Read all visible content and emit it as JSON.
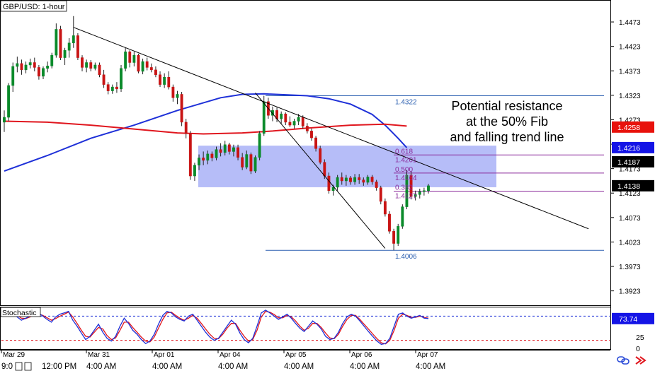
{
  "chart_data": {
    "type": "candlestick",
    "symbol": "GBP/USD: 1-hour",
    "price_axis": {
      "ylim": [
        1.3895,
        1.4515
      ],
      "ticks": [
        "1.4473",
        "1.4423",
        "1.4373",
        "1.4323",
        "1.4273",
        "1.4223",
        "1.4173",
        "1.4123",
        "1.4073",
        "1.4023",
        "1.3973",
        "1.3923"
      ]
    },
    "price_badges": [
      {
        "label": "1.4258",
        "value": 1.4258,
        "bg": "#e8120c",
        "fg": "#ffffff"
      },
      {
        "label": "1.4216",
        "value": 1.4216,
        "bg": "#1414e6",
        "fg": "#ffffff"
      },
      {
        "label": "1.4187",
        "value": 1.4187,
        "bg": "#000000",
        "fg": "#ffffff"
      },
      {
        "label": "1.4138",
        "value": 1.4138,
        "bg": "#000000",
        "fg": "#ffffff"
      }
    ],
    "date_labels": [
      "Mar 29",
      "Mar 31",
      "Apr 01",
      "Apr 04",
      "Apr 05",
      "Apr 06",
      "Apr 07"
    ],
    "time_labels": [
      "9:0",
      "12:00 PM",
      "4:00 AM",
      "4:00 AM",
      "4:00 AM",
      "4:00 AM",
      "4:00 AM",
      "4:00 AM"
    ],
    "candles": [
      [
        1.4268,
        1.4292,
        1.4248,
        1.4278
      ],
      [
        1.4278,
        1.4348,
        1.427,
        1.4343
      ],
      [
        1.4343,
        1.439,
        1.433,
        1.4382
      ],
      [
        1.4382,
        1.4402,
        1.437,
        1.4388
      ],
      [
        1.4388,
        1.4396,
        1.4365,
        1.4375
      ],
      [
        1.4375,
        1.4392,
        1.4368,
        1.4385
      ],
      [
        1.4385,
        1.4398,
        1.4378,
        1.439
      ],
      [
        1.439,
        1.44,
        1.4372,
        1.438
      ],
      [
        1.438,
        1.4385,
        1.4355,
        1.4362
      ],
      [
        1.4362,
        1.4382,
        1.4356,
        1.4378
      ],
      [
        1.4378,
        1.4392,
        1.437,
        1.4383
      ],
      [
        1.4383,
        1.441,
        1.4378,
        1.4405
      ],
      [
        1.4405,
        1.447,
        1.44,
        1.4458
      ],
      [
        1.4458,
        1.4465,
        1.4395,
        1.44
      ],
      [
        1.44,
        1.442,
        1.4385,
        1.4415
      ],
      [
        1.4415,
        1.444,
        1.44,
        1.443
      ],
      [
        1.443,
        1.4485,
        1.442,
        1.4445
      ],
      [
        1.4445,
        1.445,
        1.4395,
        1.44
      ],
      [
        1.44,
        1.4405,
        1.4372,
        1.438
      ],
      [
        1.438,
        1.4396,
        1.437,
        1.439
      ],
      [
        1.439,
        1.4395,
        1.4372,
        1.4378
      ],
      [
        1.4378,
        1.439,
        1.4374,
        1.4385
      ],
      [
        1.4385,
        1.439,
        1.436,
        1.4365
      ],
      [
        1.4365,
        1.4375,
        1.4338,
        1.4345
      ],
      [
        1.4345,
        1.435,
        1.4325,
        1.4332
      ],
      [
        1.4332,
        1.4345,
        1.4326,
        1.434
      ],
      [
        1.434,
        1.435,
        1.4328,
        1.4336
      ],
      [
        1.4336,
        1.4385,
        1.433,
        1.4378
      ],
      [
        1.4378,
        1.442,
        1.4372,
        1.4412
      ],
      [
        1.4412,
        1.4415,
        1.438,
        1.439
      ],
      [
        1.439,
        1.4412,
        1.4382,
        1.4405
      ],
      [
        1.4405,
        1.4408,
        1.4368,
        1.4372
      ],
      [
        1.4372,
        1.4398,
        1.4366,
        1.4392
      ],
      [
        1.4392,
        1.44,
        1.4374,
        1.438
      ],
      [
        1.438,
        1.4388,
        1.437,
        1.4375
      ],
      [
        1.4375,
        1.4382,
        1.436,
        1.4365
      ],
      [
        1.4365,
        1.4372,
        1.434,
        1.4345
      ],
      [
        1.4345,
        1.4368,
        1.4338,
        1.436
      ],
      [
        1.436,
        1.4372,
        1.4335,
        1.434
      ],
      [
        1.434,
        1.4345,
        1.431,
        1.4318
      ],
      [
        1.4318,
        1.4332,
        1.4305,
        1.4325
      ],
      [
        1.4325,
        1.433,
        1.426,
        1.4268
      ],
      [
        1.4268,
        1.4275,
        1.4235,
        1.4245
      ],
      [
        1.4245,
        1.425,
        1.415,
        1.4158
      ],
      [
        1.4158,
        1.4185,
        1.4148,
        1.418
      ],
      [
        1.418,
        1.4202,
        1.417,
        1.4195
      ],
      [
        1.4195,
        1.4208,
        1.418,
        1.419
      ],
      [
        1.419,
        1.421,
        1.4182,
        1.4203
      ],
      [
        1.4203,
        1.4208,
        1.4188,
        1.4195
      ],
      [
        1.4195,
        1.4218,
        1.419,
        1.4212
      ],
      [
        1.4212,
        1.4225,
        1.4198,
        1.4206
      ],
      [
        1.4206,
        1.423,
        1.42,
        1.4222
      ],
      [
        1.4222,
        1.4226,
        1.4202,
        1.4208
      ],
      [
        1.4208,
        1.4222,
        1.4198,
        1.4216
      ],
      [
        1.4216,
        1.4222,
        1.419,
        1.4196
      ],
      [
        1.4196,
        1.4205,
        1.417,
        1.4176
      ],
      [
        1.4176,
        1.421,
        1.4172,
        1.4202
      ],
      [
        1.4202,
        1.4206,
        1.4162,
        1.4168
      ],
      [
        1.4168,
        1.42,
        1.4164,
        1.4196
      ],
      [
        1.4196,
        1.425,
        1.419,
        1.4245
      ],
      [
        1.4245,
        1.4322,
        1.424,
        1.431
      ],
      [
        1.431,
        1.4318,
        1.4275,
        1.4282
      ],
      [
        1.4282,
        1.43,
        1.427,
        1.4292
      ],
      [
        1.4292,
        1.4298,
        1.4268,
        1.4275
      ],
      [
        1.4275,
        1.429,
        1.4265,
        1.4285
      ],
      [
        1.4285,
        1.4288,
        1.4262,
        1.4268
      ],
      [
        1.4268,
        1.428,
        1.4258,
        1.4262
      ],
      [
        1.4262,
        1.4275,
        1.4255,
        1.427
      ],
      [
        1.427,
        1.4285,
        1.4262,
        1.4278
      ],
      [
        1.4278,
        1.4282,
        1.4255,
        1.426
      ],
      [
        1.426,
        1.4266,
        1.4245,
        1.425
      ],
      [
        1.425,
        1.4255,
        1.423,
        1.4236
      ],
      [
        1.4236,
        1.424,
        1.4208,
        1.4214
      ],
      [
        1.4214,
        1.422,
        1.4182,
        1.4186
      ],
      [
        1.4186,
        1.4192,
        1.4152,
        1.4158
      ],
      [
        1.4158,
        1.4165,
        1.4122,
        1.4128
      ],
      [
        1.4128,
        1.414,
        1.4118,
        1.4135
      ],
      [
        1.4135,
        1.416,
        1.4128,
        1.4155
      ],
      [
        1.4155,
        1.4165,
        1.414,
        1.4148
      ],
      [
        1.4148,
        1.416,
        1.4138,
        1.4154
      ],
      [
        1.4154,
        1.4158,
        1.414,
        1.4146
      ],
      [
        1.4146,
        1.4162,
        1.414,
        1.4155
      ],
      [
        1.4155,
        1.4162,
        1.4142,
        1.415
      ],
      [
        1.415,
        1.4155,
        1.4138,
        1.4145
      ],
      [
        1.4145,
        1.416,
        1.414,
        1.4156
      ],
      [
        1.4156,
        1.416,
        1.414,
        1.4146
      ],
      [
        1.4146,
        1.415,
        1.4128,
        1.4134
      ],
      [
        1.4134,
        1.4138,
        1.41,
        1.4106
      ],
      [
        1.4106,
        1.4112,
        1.4075,
        1.408
      ],
      [
        1.408,
        1.4086,
        1.404,
        1.4045
      ],
      [
        1.4045,
        1.405,
        1.4006,
        1.402
      ],
      [
        1.402,
        1.406,
        1.4015,
        1.4055
      ],
      [
        1.4055,
        1.41,
        1.405,
        1.4095
      ],
      [
        1.4095,
        1.417,
        1.409,
        1.416
      ],
      [
        1.416,
        1.4168,
        1.411,
        1.4116
      ],
      [
        1.4116,
        1.4128,
        1.4108,
        1.412
      ],
      [
        1.412,
        1.4132,
        1.4112,
        1.4126
      ],
      [
        1.4126,
        1.4134,
        1.4118,
        1.4128
      ],
      [
        1.4128,
        1.4142,
        1.4122,
        1.4138
      ]
    ],
    "moving_averages": [
      {
        "color": "#1e30d8",
        "values": [
          [
            0,
            1.4168
          ],
          [
            10,
            1.42
          ],
          [
            20,
            1.4235
          ],
          [
            30,
            1.4262
          ],
          [
            40,
            1.4292
          ],
          [
            50,
            1.4318
          ],
          [
            55,
            1.4325
          ],
          [
            60,
            1.4326
          ],
          [
            70,
            1.4322
          ],
          [
            75,
            1.4316
          ],
          [
            80,
            1.4305
          ],
          [
            85,
            1.4284
          ],
          [
            88,
            1.4262
          ],
          [
            91,
            1.4235
          ],
          [
            93,
            1.4216
          ]
        ]
      },
      {
        "color": "#e0161e",
        "values": [
          [
            0,
            1.427
          ],
          [
            10,
            1.4268
          ],
          [
            20,
            1.4262
          ],
          [
            30,
            1.4254
          ],
          [
            40,
            1.4246
          ],
          [
            46,
            1.4244
          ],
          [
            55,
            1.4246
          ],
          [
            62,
            1.425
          ],
          [
            70,
            1.4256
          ],
          [
            80,
            1.4262
          ],
          [
            88,
            1.4264
          ],
          [
            93,
            1.426
          ]
        ]
      }
    ],
    "trend_lines": [
      {
        "from": [
          16,
          1.4462
        ],
        "to": [
          135,
          1.405
        ],
        "color": "#000000"
      },
      {
        "from": [
          58,
          1.4328
        ],
        "to": [
          88,
          1.401
        ],
        "color": "#000000"
      }
    ],
    "fibonacci": {
      "high": {
        "label": "1.4322",
        "value": 1.4322
      },
      "low": {
        "label": "1.4006",
        "value": 1.4006
      },
      "levels": [
        {
          "ratio_label": "0.618",
          "value_label": "1.4201",
          "value": 1.4201
        },
        {
          "ratio_label": "0.500",
          "value_label": "1.4164",
          "value": 1.4164
        },
        {
          "ratio_label": "0.382",
          "value_label": "1.4127",
          "value": 1.4127
        }
      ]
    },
    "zone": {
      "from_value": 1.422,
      "to_value": 1.4135
    },
    "annotation": [
      "Potential resistance",
      "at the 50% Fib",
      "and falling trend line"
    ],
    "stochastic": {
      "label": "Stochastic",
      "current": "73.74",
      "axis_ticks": [
        "25",
        "0"
      ],
      "levels": [
        {
          "value": 80,
          "color": "#1e30d8"
        },
        {
          "value": 20,
          "color": "#e0161e"
        }
      ],
      "k_color": "#1e30d8",
      "d_color": "#e0161e",
      "k": [
        82,
        85,
        88,
        78,
        70,
        75,
        80,
        85,
        88,
        80,
        72,
        65,
        78,
        85,
        88,
        92,
        70,
        55,
        38,
        22,
        30,
        45,
        60,
        40,
        25,
        18,
        30,
        55,
        75,
        62,
        45,
        35,
        22,
        12,
        18,
        35,
        60,
        82,
        92,
        88,
        78,
        72,
        68,
        80,
        85,
        70,
        55,
        40,
        28,
        20,
        25,
        40,
        55,
        70,
        60,
        38,
        22,
        14,
        25,
        55,
        88,
        95,
        88,
        80,
        72,
        78,
        85,
        75,
        62,
        50,
        42,
        55,
        68,
        60,
        48,
        30,
        22,
        25,
        40,
        62,
        78,
        85,
        80,
        68,
        55,
        42,
        30,
        18,
        10,
        12,
        25,
        55,
        85,
        88,
        80,
        75,
        78,
        82,
        75,
        74
      ],
      "d": [
        80,
        83,
        86,
        82,
        75,
        74,
        78,
        82,
        86,
        82,
        76,
        70,
        74,
        80,
        85,
        90,
        78,
        62,
        45,
        30,
        28,
        40,
        52,
        48,
        32,
        22,
        26,
        45,
        65,
        65,
        52,
        40,
        28,
        18,
        16,
        28,
        50,
        72,
        88,
        90,
        82,
        75,
        70,
        75,
        82,
        75,
        62,
        48,
        35,
        25,
        24,
        35,
        50,
        62,
        62,
        45,
        30,
        18,
        22,
        45,
        78,
        92,
        90,
        84,
        76,
        76,
        82,
        78,
        68,
        55,
        45,
        50,
        62,
        62,
        52,
        38,
        26,
        24,
        35,
        55,
        72,
        82,
        82,
        72,
        60,
        48,
        36,
        24,
        14,
        11,
        20,
        45,
        75,
        85,
        82,
        77,
        77,
        80,
        77,
        75
      ]
    }
  }
}
